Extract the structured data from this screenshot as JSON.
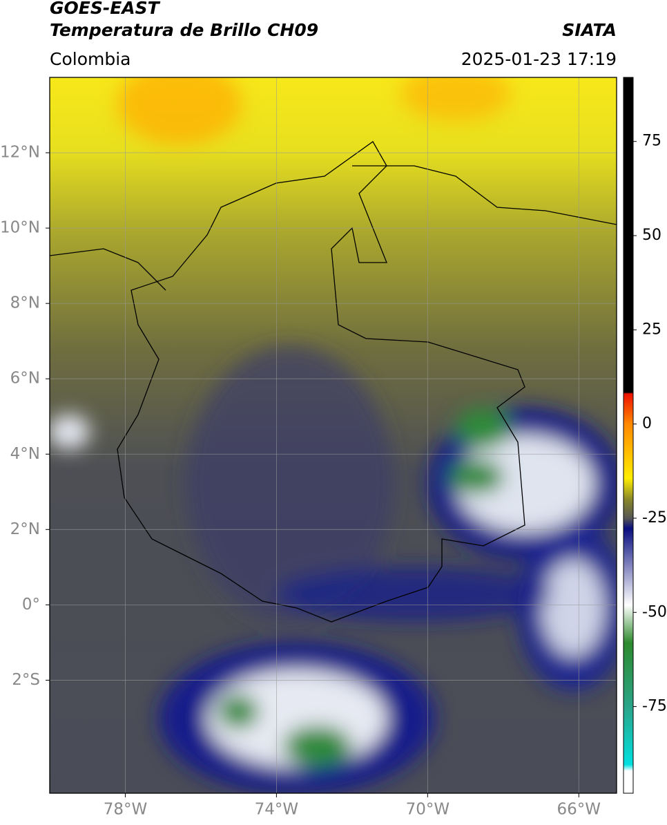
{
  "header": {
    "title_line1": "GOES-EAST",
    "title_line2": "Temperatura de Brillo CH09",
    "source": "SIATA",
    "region": "Colombia",
    "timestamp": "2025-01-23 17:19"
  },
  "map": {
    "lonlim": [
      -80,
      -65
    ],
    "latlim": [
      -5,
      14
    ],
    "lon_ticks": [
      {
        "value": -78,
        "label": "78°W"
      },
      {
        "value": -74,
        "label": "74°W"
      },
      {
        "value": -70,
        "label": "70°W"
      },
      {
        "value": -66,
        "label": "66°W"
      }
    ],
    "lat_ticks": [
      {
        "value": 12,
        "label": "12°N"
      },
      {
        "value": 10,
        "label": "10°N"
      },
      {
        "value": 8,
        "label": "8°N"
      },
      {
        "value": 6,
        "label": "6°N"
      },
      {
        "value": 4,
        "label": "4°N"
      },
      {
        "value": 2,
        "label": "2°N"
      },
      {
        "value": 0,
        "label": "0°"
      },
      {
        "value": -2,
        "label": "2°S"
      }
    ],
    "grid": true
  },
  "colorbar": {
    "limits": [
      -98,
      92
    ],
    "ticks": [
      75,
      50,
      25,
      0,
      -25,
      -50,
      -75
    ]
  }
}
